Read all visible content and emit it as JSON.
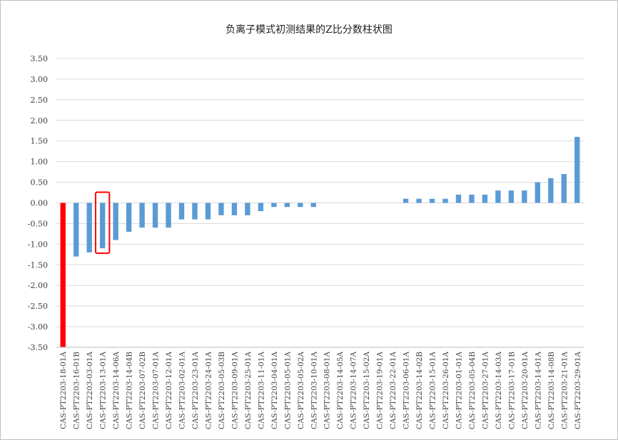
{
  "chart_data": {
    "type": "bar",
    "title": "负离子模式初测结果的Z比分数柱状图",
    "xlabel": "",
    "ylabel": "",
    "ylim": [
      -3.5,
      3.5
    ],
    "ytick_step": 0.5,
    "grid": true,
    "legend": "none",
    "colors": {
      "bar": "#5b9bd5",
      "highlight_bar": "#ff0000",
      "highlight_box": "#ff0000",
      "grid": "#d9d9d9",
      "axis": "#bfbfbf"
    },
    "highlight_bar_index": 0,
    "boxed_bar_index": 3,
    "categories": [
      "CAS-PT2203-18-01A",
      "CAS-PT2203-16-01B",
      "CAS-PT2203-03-01A",
      "CAS-PT2203-13-01A",
      "CAS-PT2203-14-06A",
      "CAS-PT2203-14-04B",
      "CAS-PT2203-07-02B",
      "CAS-PT2203-07-01A",
      "CAS-PT2203-12-01A",
      "CAS-PT2203-02-01A",
      "CAS-PT2203-23-01A",
      "CAS-PT2203-24-01A",
      "CAS-PT2203-05-03B",
      "CAS-PT2203-09-01A",
      "CAS-PT2203-25-01A",
      "CAS-PT2203-11-01A",
      "CAS-PT2203-04-01A",
      "CAS-PT2203-05-01A",
      "CAS-PT2203-05-02A",
      "CAS-PT2203-10-01A",
      "CAS-PT2203-08-01A",
      "CAS-PT2203-14-05A",
      "CAS-PT2203-14-07A",
      "CAS-PT2203-15-02A",
      "CAS-PT2203-19-01A",
      "CAS-PT2203-22-01A",
      "CAS-PT2203-06-01A",
      "CAS-PT2203-14-02B",
      "CAS-PT2203-15-01A",
      "CAS-PT2203-26-01A",
      "CAS-PT2203-01-01A",
      "CAS-PT2203-05-04B",
      "CAS-PT2203-27-01A",
      "CAS-PT2203-14-03A",
      "CAS-PT2203-17-01B",
      "CAS-PT2203-20-01A",
      "CAS-PT2203-14-01A",
      "CAS-PT2203-14-08B",
      "CAS-PT2203-21-01A",
      "CAS-PT2203-29-01A"
    ],
    "values": [
      -3.5,
      -1.3,
      -1.2,
      -1.1,
      -0.9,
      -0.7,
      -0.6,
      -0.6,
      -0.6,
      -0.4,
      -0.4,
      -0.4,
      -0.3,
      -0.3,
      -0.3,
      -0.2,
      -0.1,
      -0.1,
      -0.1,
      -0.1,
      0,
      0,
      0,
      0,
      0,
      0,
      0.1,
      0.1,
      0.1,
      0.1,
      0.2,
      0.2,
      0.2,
      0.3,
      0.3,
      0.3,
      0.5,
      0.6,
      0.7,
      1.6
    ]
  }
}
